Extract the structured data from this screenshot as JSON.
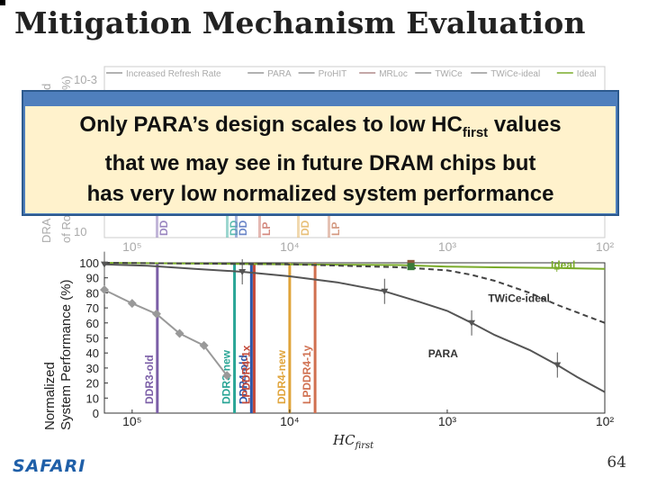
{
  "slide": {
    "title": "Mitigation Mechanism Evaluation",
    "overlay_line1_pre": "Only PARA’s design scales to low HC",
    "overlay_line1_sub": "first",
    "overlay_line1_post": " values",
    "overlay_line2": "that we may see in future DRAM chips but",
    "overlay_line3": "has very low normalized system performance",
    "logo": "SAFARI",
    "page_number": "64"
  },
  "top_chart": {
    "y_tick_top": "10-3",
    "y_tick_bottom": "10",
    "y_label_line1": "DRA",
    "y_label_line2": "of Ro",
    "y_label_fragment_top": "d",
    "y_label_fragment_top2": "%)",
    "legend": [
      "Increased Refresh Rate",
      "PARA",
      "ProHIT",
      "MRLoc",
      "TWiCe",
      "TWiCe-ideal",
      "Ideal"
    ],
    "x_ticks": [
      "10⁵",
      "10⁴",
      "10³",
      "10²"
    ],
    "partial_labels": [
      "DD",
      "DD",
      "DD",
      "LP",
      "DD",
      "LP"
    ]
  },
  "chart_data": {
    "type": "line",
    "title": "",
    "xlabel_main": "HC",
    "xlabel_sub": "first",
    "ylabel_line1": "Normalized",
    "ylabel_line2": "System Performance (%)",
    "x_scale": "log-reversed",
    "x_ticks": [
      "10⁵",
      "10⁴",
      "10³",
      "10²"
    ],
    "y_ticks": [
      0,
      10,
      20,
      30,
      40,
      50,
      60,
      70,
      80,
      90,
      100
    ],
    "ylim": [
      0,
      100
    ],
    "series": [
      {
        "name": "Ideal",
        "color": "#7aab2a",
        "points": [
          [
            150000,
            100
          ],
          [
            10000,
            99
          ],
          [
            2000,
            98.5
          ],
          [
            1000,
            97.5
          ],
          [
            500,
            97
          ],
          [
            200,
            96.5
          ],
          [
            100,
            96
          ]
        ]
      },
      {
        "name": "TWiCe-ideal",
        "color": "#444444",
        "dashed": true,
        "points": [
          [
            150000,
            100
          ],
          [
            10000,
            99
          ],
          [
            2000,
            97
          ],
          [
            1000,
            95
          ],
          [
            700,
            92
          ],
          [
            500,
            88
          ],
          [
            300,
            80
          ],
          [
            200,
            72
          ],
          [
            150,
            67
          ],
          [
            100,
            60
          ]
        ]
      },
      {
        "name": "PARA",
        "color": "#555555",
        "points": [
          [
            150000,
            99
          ],
          [
            80000,
            98
          ],
          [
            40000,
            96
          ],
          [
            20000,
            94
          ],
          [
            10000,
            91
          ],
          [
            5000,
            87
          ],
          [
            2500,
            81
          ],
          [
            1500,
            74
          ],
          [
            1000,
            68
          ],
          [
            700,
            60
          ],
          [
            500,
            52
          ],
          [
            300,
            42
          ],
          [
            200,
            32
          ],
          [
            150,
            24
          ],
          [
            100,
            14
          ]
        ]
      },
      {
        "name": "TWiCe",
        "color": "#999999",
        "points": [
          [
            150000,
            82
          ],
          [
            100000,
            73
          ],
          [
            70000,
            66
          ],
          [
            50000,
            53
          ],
          [
            35000,
            45
          ],
          [
            25000,
            25
          ]
        ]
      },
      {
        "name": "ProHIT",
        "color": "#8b5a3c",
        "points": [
          [
            1700,
            99.5
          ]
        ]
      },
      {
        "name": "MRLoc",
        "color": "#3a7a3a",
        "points": [
          [
            1700,
            97.5
          ]
        ]
      }
    ],
    "vertical_lines": [
      {
        "label": "DDR3-old",
        "hc": 69200,
        "color": "#7b5ea7"
      },
      {
        "label": "DDR3-new",
        "hc": 22400,
        "color": "#2aa596"
      },
      {
        "label": "DDR4-old",
        "hc": 17500,
        "color": "#2b56a8"
      },
      {
        "label": "LPDDR4-1x",
        "hc": 16800,
        "color": "#c44a3a"
      },
      {
        "label": "DDR4-new",
        "hc": 10000,
        "color": "#e0a43a"
      },
      {
        "label": "LPDDR4-1y",
        "hc": 6900,
        "color": "#d07050"
      }
    ],
    "series_labels": [
      {
        "text": "Ideal",
        "hc": 100,
        "y": 96
      },
      {
        "text": "TWiCe-ideal",
        "hc": 250,
        "y": 74
      },
      {
        "text": "PARA",
        "hc": 600,
        "y": 37
      }
    ]
  }
}
